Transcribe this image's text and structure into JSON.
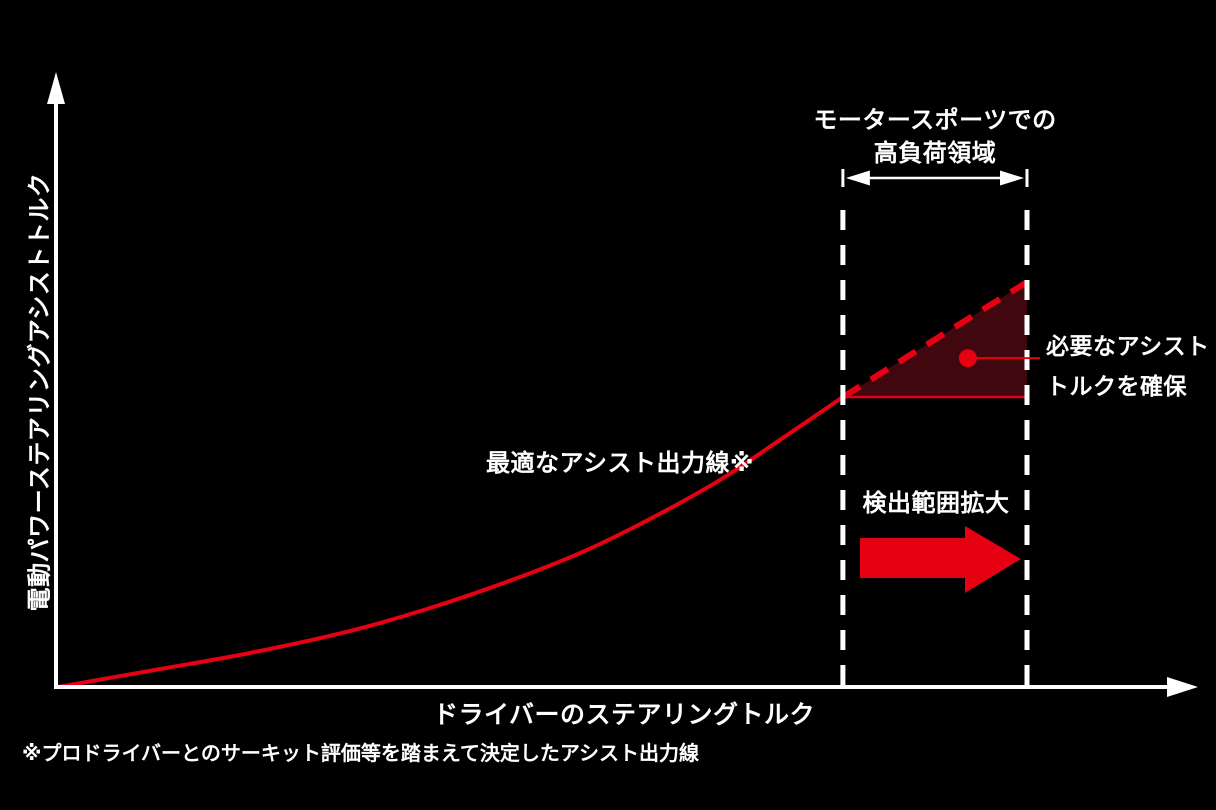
{
  "colors": {
    "accent_red": "#e60012",
    "gap_fill": "#40080e",
    "axis_white": "#ffffff",
    "background": "#000000"
  },
  "chart_data": {
    "type": "line",
    "title": "",
    "xlabel": "ドライバーのステアリングトルク",
    "ylabel": "電動パワーステアリングアシストトルク",
    "axis_ranges": {
      "x": [
        0,
        100
      ],
      "y": [
        0,
        100
      ]
    },
    "grid": false,
    "legend": "none",
    "series": [
      {
        "name": "optimal_assist_curve",
        "style": "solid",
        "width": 4,
        "color": "#e60012",
        "x": [
          0,
          9.5,
          19.8,
          30.1,
          38.4,
          46.6,
          53.9,
          61.1,
          68.3,
          74.5,
          81
        ],
        "y": [
          0,
          4,
          8.4,
          13.8,
          19.5,
          26.2,
          33.1,
          41.5,
          51.1,
          61,
          71.6
        ]
      },
      {
        "name": "required_assist_extension",
        "style": "dashed",
        "width": 6,
        "color": "#e60012",
        "x": [
          81,
          100
        ],
        "y": [
          71.6,
          100
        ]
      },
      {
        "name": "assist_saturation_line",
        "style": "solid",
        "width": 2.5,
        "color": "#e60012",
        "x": [
          81,
          100
        ],
        "y": [
          71.6,
          71.6
        ]
      }
    ],
    "highlight_region": {
      "x_start": 81,
      "x_end": 100,
      "fill_between": [
        "required_assist_extension",
        "assist_saturation_line"
      ],
      "fill_color": "#40080e",
      "boundary_style": "white-dashed"
    },
    "annotations": {
      "high_load_region": "モータースポーツでの\n高負荷領域",
      "optimal_line": "最適なアシスト出力線※",
      "assist_secured": "必要なアシスト\nトルクを確保",
      "detection_expand": "検出範囲拡大",
      "footnote": "※プロドライバーとのサーキット評価等を踏まえて決定したアシスト出力線",
      "callout_point": {
        "x": 93.9,
        "y": 81.2
      }
    }
  }
}
